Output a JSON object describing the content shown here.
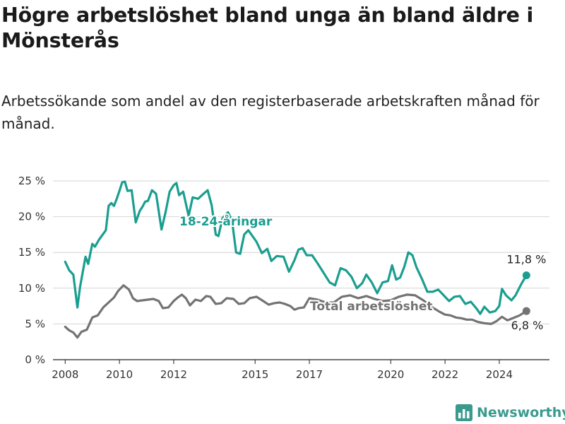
{
  "title": "Högre arbetslöshet bland unga än bland äldre i Mönsterås",
  "subtitle": "Arbetssökande som andel av den registerbaserade arbetskraften månad för månad.",
  "brand": {
    "name": "Newsworthy",
    "color": "#3a9a8e",
    "icon": "bar-chart-logo-icon"
  },
  "chart_data": {
    "type": "line",
    "title": "Högre arbetslöshet bland unga än bland äldre i Mönsterås",
    "subtitle": "Arbetssökande som andel av den registerbaserade arbetskraften månad för månad.",
    "xlabel": "",
    "ylabel": "",
    "x_range": [
      2007.55,
      2025.85
    ],
    "ylim": [
      0,
      25
    ],
    "y_ticks": [
      0,
      5,
      10,
      15,
      20,
      25
    ],
    "y_tick_labels": [
      "0 %",
      "5 %",
      "10 %",
      "15 %",
      "20 %",
      "25 %"
    ],
    "x_ticks": [
      2008,
      2010,
      2012,
      2015,
      2017,
      2020,
      2022,
      2024
    ],
    "x_tick_labels": [
      "2008",
      "2010",
      "2012",
      "2015",
      "2017",
      "2020",
      "2022",
      "2024"
    ],
    "grid": "horizontal",
    "legend": "inline labels",
    "series": [
      {
        "name": "18-24-åringar",
        "color": "#1a9e8f",
        "end_label": "11,8 %",
        "points": [
          [
            2008.0,
            13.7
          ],
          [
            2008.15,
            12.5
          ],
          [
            2008.3,
            11.9
          ],
          [
            2008.45,
            7.3
          ],
          [
            2008.55,
            10.2
          ],
          [
            2008.75,
            14.4
          ],
          [
            2008.85,
            13.4
          ],
          [
            2009.0,
            16.2
          ],
          [
            2009.1,
            15.8
          ],
          [
            2009.25,
            16.8
          ],
          [
            2009.5,
            18.1
          ],
          [
            2009.6,
            21.5
          ],
          [
            2009.7,
            21.9
          ],
          [
            2009.8,
            21.5
          ],
          [
            2009.9,
            22.5
          ],
          [
            2010.0,
            23.6
          ],
          [
            2010.1,
            24.8
          ],
          [
            2010.2,
            24.9
          ],
          [
            2010.3,
            23.6
          ],
          [
            2010.45,
            23.7
          ],
          [
            2010.6,
            19.2
          ],
          [
            2010.75,
            20.8
          ],
          [
            2010.85,
            21.4
          ],
          [
            2010.95,
            22.1
          ],
          [
            2011.05,
            22.2
          ],
          [
            2011.2,
            23.7
          ],
          [
            2011.35,
            23.2
          ],
          [
            2011.55,
            18.2
          ],
          [
            2011.7,
            20.6
          ],
          [
            2011.85,
            23.5
          ],
          [
            2012.0,
            24.4
          ],
          [
            2012.1,
            24.7
          ],
          [
            2012.2,
            23.0
          ],
          [
            2012.35,
            23.5
          ],
          [
            2012.55,
            20.1
          ],
          [
            2012.7,
            22.7
          ],
          [
            2012.9,
            22.5
          ],
          [
            2013.1,
            23.2
          ],
          [
            2013.25,
            23.7
          ],
          [
            2013.4,
            21.6
          ],
          [
            2013.55,
            17.5
          ],
          [
            2013.65,
            17.3
          ],
          [
            2013.8,
            19.8
          ],
          [
            2014.0,
            20.6
          ],
          [
            2014.15,
            19.5
          ],
          [
            2014.3,
            15.0
          ],
          [
            2014.45,
            14.8
          ],
          [
            2014.6,
            17.5
          ],
          [
            2014.75,
            18.1
          ],
          [
            2015.05,
            16.5
          ],
          [
            2015.25,
            14.9
          ],
          [
            2015.45,
            15.5
          ],
          [
            2015.6,
            13.8
          ],
          [
            2015.8,
            14.5
          ],
          [
            2016.05,
            14.4
          ],
          [
            2016.25,
            12.3
          ],
          [
            2016.45,
            13.9
          ],
          [
            2016.6,
            15.4
          ],
          [
            2016.75,
            15.6
          ],
          [
            2016.9,
            14.6
          ],
          [
            2017.1,
            14.6
          ],
          [
            2017.3,
            13.5
          ],
          [
            2017.55,
            12.0
          ],
          [
            2017.75,
            10.8
          ],
          [
            2017.95,
            10.4
          ],
          [
            2018.15,
            12.8
          ],
          [
            2018.35,
            12.5
          ],
          [
            2018.55,
            11.6
          ],
          [
            2018.75,
            10.0
          ],
          [
            2018.95,
            10.7
          ],
          [
            2019.1,
            11.9
          ],
          [
            2019.3,
            10.8
          ],
          [
            2019.5,
            9.3
          ],
          [
            2019.7,
            10.8
          ],
          [
            2019.9,
            11.0
          ],
          [
            2020.05,
            13.2
          ],
          [
            2020.2,
            11.2
          ],
          [
            2020.35,
            11.5
          ],
          [
            2020.5,
            13.0
          ],
          [
            2020.65,
            15.0
          ],
          [
            2020.8,
            14.6
          ],
          [
            2020.95,
            12.9
          ],
          [
            2021.15,
            11.3
          ],
          [
            2021.35,
            9.5
          ],
          [
            2021.55,
            9.5
          ],
          [
            2021.75,
            9.8
          ],
          [
            2021.95,
            9.0
          ],
          [
            2022.15,
            8.2
          ],
          [
            2022.35,
            8.8
          ],
          [
            2022.55,
            8.9
          ],
          [
            2022.75,
            7.8
          ],
          [
            2022.95,
            8.1
          ],
          [
            2023.15,
            7.2
          ],
          [
            2023.3,
            6.4
          ],
          [
            2023.45,
            7.4
          ],
          [
            2023.65,
            6.6
          ],
          [
            2023.85,
            6.8
          ],
          [
            2024.0,
            7.5
          ],
          [
            2024.1,
            9.9
          ],
          [
            2024.25,
            9.0
          ],
          [
            2024.45,
            8.3
          ],
          [
            2024.6,
            9.0
          ],
          [
            2024.8,
            10.5
          ],
          [
            2025.0,
            11.8
          ]
        ]
      },
      {
        "name": "Total arbetslöshet",
        "color": "#737373",
        "end_label": "6,8 %",
        "points": [
          [
            2008.0,
            4.6
          ],
          [
            2008.15,
            4.1
          ],
          [
            2008.3,
            3.8
          ],
          [
            2008.45,
            3.1
          ],
          [
            2008.6,
            3.9
          ],
          [
            2008.8,
            4.2
          ],
          [
            2009.0,
            5.9
          ],
          [
            2009.2,
            6.2
          ],
          [
            2009.4,
            7.3
          ],
          [
            2009.6,
            8.0
          ],
          [
            2009.8,
            8.7
          ],
          [
            2009.95,
            9.6
          ],
          [
            2010.05,
            10.0
          ],
          [
            2010.15,
            10.4
          ],
          [
            2010.35,
            9.8
          ],
          [
            2010.5,
            8.6
          ],
          [
            2010.65,
            8.2
          ],
          [
            2010.85,
            8.3
          ],
          [
            2011.05,
            8.4
          ],
          [
            2011.25,
            8.5
          ],
          [
            2011.45,
            8.2
          ],
          [
            2011.6,
            7.2
          ],
          [
            2011.8,
            7.3
          ],
          [
            2012.0,
            8.2
          ],
          [
            2012.15,
            8.7
          ],
          [
            2012.3,
            9.1
          ],
          [
            2012.45,
            8.6
          ],
          [
            2012.6,
            7.6
          ],
          [
            2012.8,
            8.4
          ],
          [
            2013.0,
            8.2
          ],
          [
            2013.2,
            8.9
          ],
          [
            2013.35,
            8.8
          ],
          [
            2013.55,
            7.8
          ],
          [
            2013.75,
            7.9
          ],
          [
            2013.95,
            8.6
          ],
          [
            2014.2,
            8.5
          ],
          [
            2014.4,
            7.8
          ],
          [
            2014.6,
            7.9
          ],
          [
            2014.8,
            8.6
          ],
          [
            2015.05,
            8.8
          ],
          [
            2015.3,
            8.2
          ],
          [
            2015.5,
            7.7
          ],
          [
            2015.7,
            7.9
          ],
          [
            2015.9,
            8.0
          ],
          [
            2016.1,
            7.8
          ],
          [
            2016.3,
            7.5
          ],
          [
            2016.45,
            7.0
          ],
          [
            2016.6,
            7.2
          ],
          [
            2016.8,
            7.3
          ],
          [
            2017.0,
            8.6
          ],
          [
            2017.3,
            8.4
          ],
          [
            2017.6,
            8.0
          ],
          [
            2017.9,
            8.0
          ],
          [
            2018.2,
            8.8
          ],
          [
            2018.5,
            9.0
          ],
          [
            2018.8,
            8.6
          ],
          [
            2019.1,
            8.9
          ],
          [
            2019.4,
            8.5
          ],
          [
            2019.7,
            8.2
          ],
          [
            2020.0,
            8.3
          ],
          [
            2020.3,
            8.8
          ],
          [
            2020.6,
            9.1
          ],
          [
            2020.9,
            9.0
          ],
          [
            2021.2,
            8.3
          ],
          [
            2021.5,
            7.4
          ],
          [
            2021.8,
            6.7
          ],
          [
            2022.0,
            6.3
          ],
          [
            2022.2,
            6.2
          ],
          [
            2022.4,
            5.9
          ],
          [
            2022.6,
            5.8
          ],
          [
            2022.8,
            5.6
          ],
          [
            2023.0,
            5.6
          ],
          [
            2023.2,
            5.3
          ],
          [
            2023.45,
            5.1
          ],
          [
            2023.7,
            5.0
          ],
          [
            2023.9,
            5.4
          ],
          [
            2024.1,
            6.0
          ],
          [
            2024.3,
            5.5
          ],
          [
            2024.5,
            5.8
          ],
          [
            2024.75,
            6.2
          ],
          [
            2025.0,
            6.8
          ]
        ]
      }
    ]
  }
}
